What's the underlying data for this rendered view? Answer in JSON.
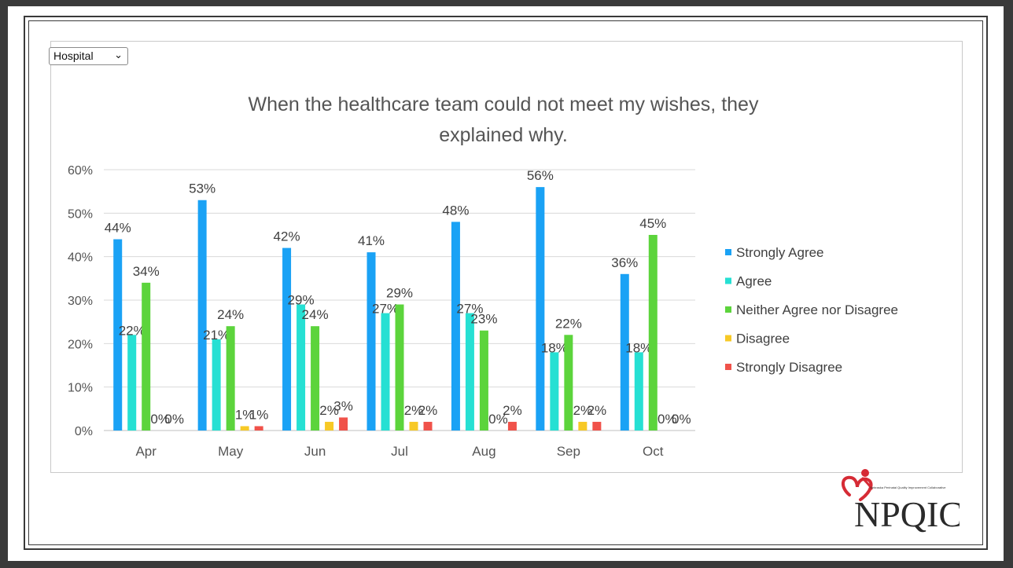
{
  "selector": {
    "selected": "Hospital",
    "chevron_icon": "chevron-down-icon"
  },
  "logo": {
    "text": "NPQIC",
    "tagline": "Nebraska Perinatal Quality Improvement Collaborative"
  },
  "colors": {
    "Strongly Agree": "#1aa2f5",
    "Agree": "#26e0d3",
    "Neither Agree nor Disagree": "#5cd43c",
    "Disagree": "#f7c926",
    "Strongly Disagree": "#f0524a",
    "logo_red": "#d62b35",
    "logo_dark": "#2a2a2a"
  },
  "chart_data": {
    "type": "bar",
    "title": "When the healthcare team could not meet my wishes, they explained why.",
    "categories": [
      "Apr",
      "May",
      "Jun",
      "Jul",
      "Aug",
      "Sep",
      "Oct"
    ],
    "ylim": [
      0,
      60
    ],
    "yticks": [
      "0%",
      "10%",
      "20%",
      "30%",
      "40%",
      "50%",
      "60%"
    ],
    "grid": true,
    "legend_position": "right",
    "series": [
      {
        "name": "Strongly Agree",
        "values": [
          44,
          53,
          42,
          41,
          48,
          56,
          36
        ],
        "labels": [
          "44%",
          "53%",
          "42%",
          "41%",
          "48%",
          "56%",
          "36%"
        ]
      },
      {
        "name": "Agree",
        "values": [
          22,
          21,
          29,
          27,
          27,
          18,
          18
        ],
        "labels": [
          "22%",
          "21%",
          "29%",
          "27%",
          "27%",
          "18%",
          "18%"
        ]
      },
      {
        "name": "Neither Agree nor Disagree",
        "values": [
          34,
          24,
          24,
          29,
          23,
          22,
          45
        ],
        "labels": [
          "34%",
          "24%",
          "24%",
          "29%",
          "23%",
          "22%",
          "45%"
        ]
      },
      {
        "name": "Disagree",
        "values": [
          0,
          1,
          2,
          2,
          0,
          2,
          0
        ],
        "labels": [
          "0%",
          "1%",
          "2%",
          "2%",
          "0%",
          "2%",
          "0%"
        ]
      },
      {
        "name": "Strongly Disagree",
        "values": [
          0,
          1,
          3,
          2,
          2,
          2,
          0
        ],
        "labels": [
          "0%",
          "1%",
          "3%",
          "2%",
          "2%",
          "2%",
          "0%"
        ]
      }
    ]
  }
}
